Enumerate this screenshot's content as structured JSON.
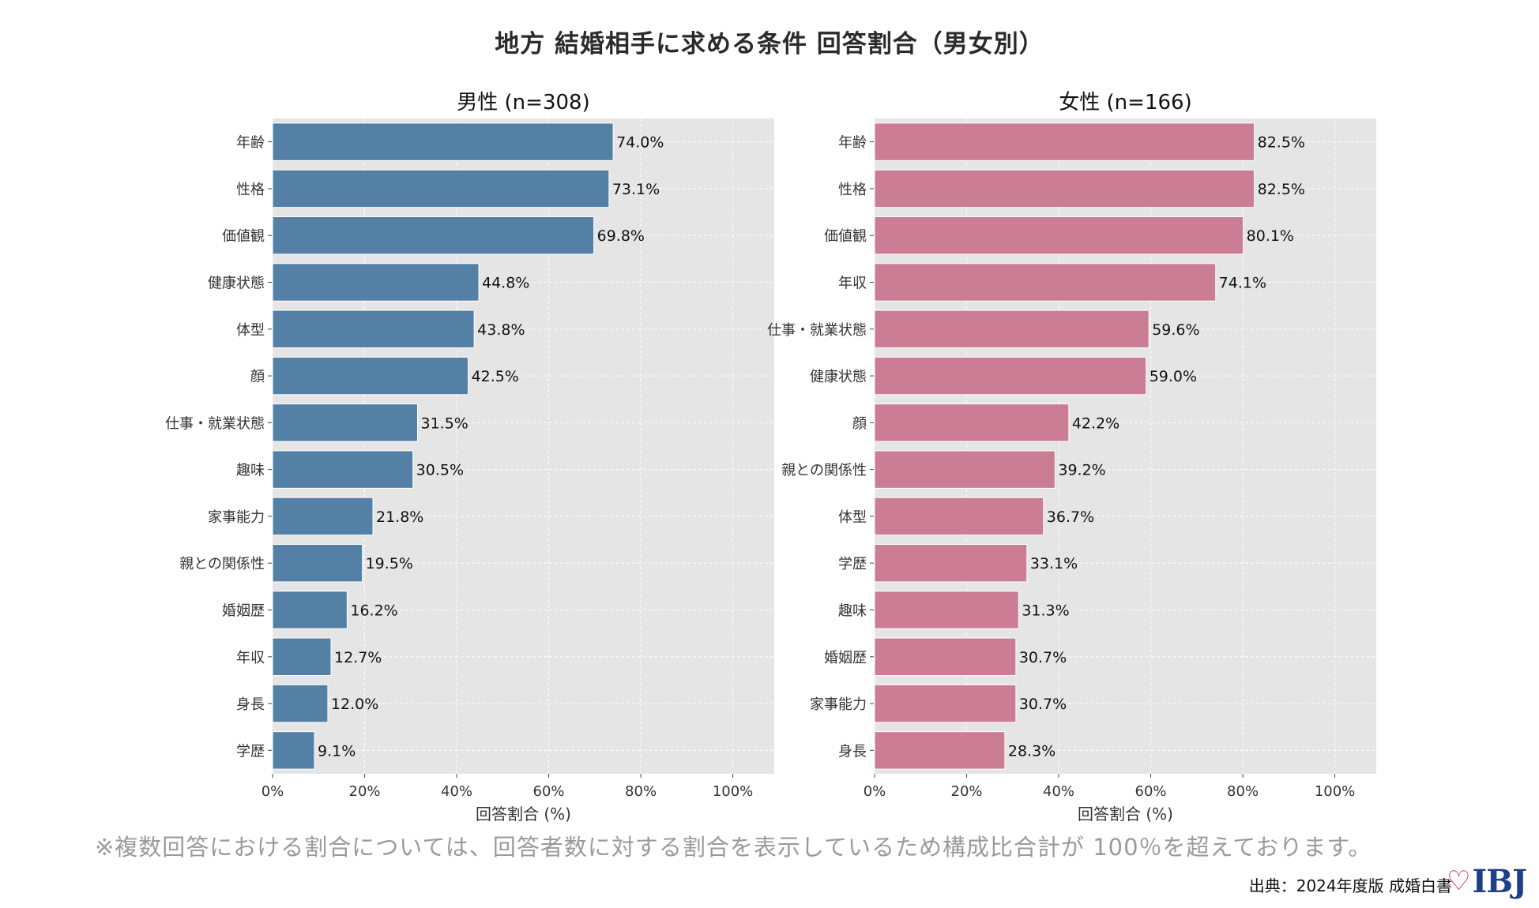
{
  "title": "地方 結婚相手に求める条件 回答割合（男女別）",
  "footnote": "※複数回答における割合については、回答者数に対する割合を表示しているため構成比合計が 100％を超えております。",
  "source": "出典：2024年度版 成婚白書",
  "logo": {
    "text": "IBJ",
    "icon": "heart-icon"
  },
  "colors": {
    "male": "#5580a6",
    "female": "#cc7d96",
    "plot_bg": "#e5e5e5",
    "grid": "#ffffff"
  },
  "chart_data": [
    {
      "type": "bar",
      "orientation": "horizontal",
      "title": "男性 (n=308)",
      "xlabel": "回答割合 (%)",
      "xlim": [
        0,
        109
      ],
      "xticks": [
        "0%",
        "20%",
        "40%",
        "60%",
        "80%",
        "100%"
      ],
      "grid": true,
      "categories": [
        "年齢",
        "性格",
        "価値観",
        "健康状態",
        "体型",
        "顔",
        "仕事・就業状態",
        "趣味",
        "家事能力",
        "親との関係性",
        "婚姻歴",
        "年収",
        "身長",
        "学歴"
      ],
      "values": [
        74.0,
        73.1,
        69.8,
        44.8,
        43.8,
        42.5,
        31.5,
        30.5,
        21.8,
        19.5,
        16.2,
        12.7,
        12.0,
        9.1
      ],
      "labels": [
        "74.0%",
        "73.1%",
        "69.8%",
        "44.8%",
        "43.8%",
        "42.5%",
        "31.5%",
        "30.5%",
        "21.8%",
        "19.5%",
        "16.2%",
        "12.7%",
        "12.0%",
        "9.1%"
      ]
    },
    {
      "type": "bar",
      "orientation": "horizontal",
      "title": "女性 (n=166)",
      "xlabel": "回答割合 (%)",
      "xlim": [
        0,
        109
      ],
      "xticks": [
        "0%",
        "20%",
        "40%",
        "60%",
        "80%",
        "100%"
      ],
      "grid": true,
      "categories": [
        "年齢",
        "性格",
        "価値観",
        "年収",
        "仕事・就業状態",
        "健康状態",
        "顔",
        "親との関係性",
        "体型",
        "学歴",
        "趣味",
        "婚姻歴",
        "家事能力",
        "身長"
      ],
      "values": [
        82.5,
        82.5,
        80.1,
        74.1,
        59.6,
        59.0,
        42.2,
        39.2,
        36.7,
        33.1,
        31.3,
        30.7,
        30.7,
        28.3
      ],
      "labels": [
        "82.5%",
        "82.5%",
        "80.1%",
        "74.1%",
        "59.6%",
        "59.0%",
        "42.2%",
        "39.2%",
        "36.7%",
        "33.1%",
        "31.3%",
        "30.7%",
        "30.7%",
        "28.3%"
      ]
    }
  ]
}
